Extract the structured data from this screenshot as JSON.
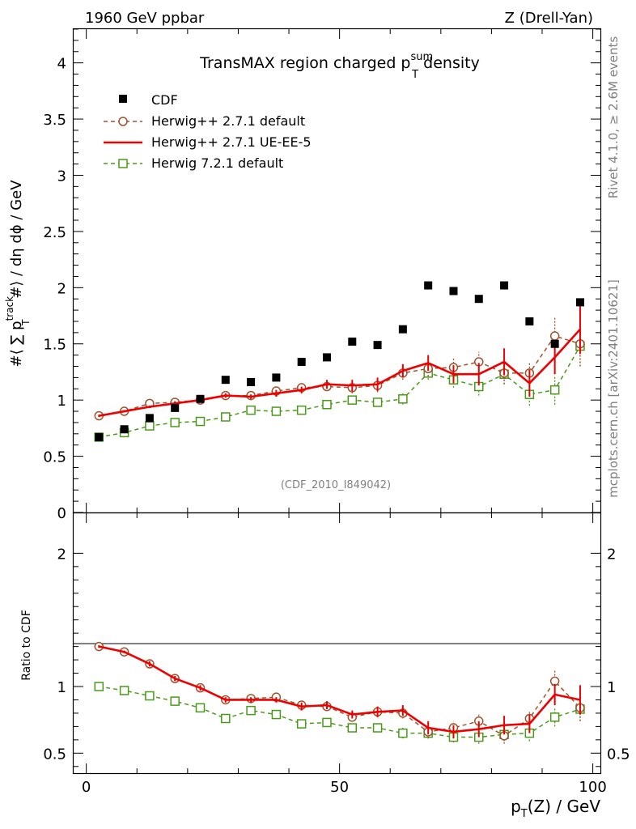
{
  "header": {
    "left": "1960 GeV ppbar",
    "right": "Z (Drell-Yan)"
  },
  "side_text": {
    "rivet": "Rivet 4.1.0, ≥ 2.6M events",
    "mcplots": "mcplots.cern.ch [arXiv:2401.10621]"
  },
  "chart_data": {
    "type": "line",
    "title_prefix": "TransMAX region charged p",
    "title_sup": "sum",
    "title_sub": "T",
    "title_suffix": " density",
    "analysis_label": "(CDF_2010_I849042)",
    "ylabel_main": {
      "prefix": "#⟨ ∑ p",
      "sup": "track",
      "sub": "T",
      "suffix": " #⟩ / dη dϕ / GeV"
    },
    "ylabel_ratio": "Ratio to CDF",
    "xlabel": {
      "prefix": "p",
      "sub": "T",
      "suffix": "(Z) / GeV"
    },
    "xlim": [
      -2.5,
      101.5
    ],
    "ylim_main": [
      0,
      4.3
    ],
    "ylim_ratio": [
      0.35,
      2.3
    ],
    "x_ticks": [
      "0",
      "50",
      "100"
    ],
    "y_ticks_main": [
      "0",
      "0.5",
      "1",
      "1.5",
      "2",
      "2.5",
      "3",
      "3.5",
      "4"
    ],
    "y_ticks_ratio": [
      "0.5",
      "1",
      "2"
    ],
    "x": [
      2.5,
      7.5,
      12.5,
      17.5,
      22.5,
      27.5,
      32.5,
      37.5,
      42.5,
      47.5,
      52.5,
      57.5,
      62.5,
      67.5,
      72.5,
      77.5,
      82.5,
      87.5,
      92.5,
      97.5
    ],
    "series": [
      {
        "name": "CDF",
        "style": "data",
        "color": "#000000",
        "values": [
          0.67,
          0.74,
          0.84,
          0.93,
          1.01,
          1.18,
          1.16,
          1.2,
          1.34,
          1.38,
          1.52,
          1.49,
          1.63,
          2.02,
          1.97,
          1.9,
          2.02,
          1.7,
          1.5,
          1.87
        ],
        "errors": [
          0.01,
          0.01,
          0.01,
          0.01,
          0.01,
          0.01,
          0.01,
          0.01,
          0.01,
          0.01,
          0.01,
          0.01,
          0.01,
          0.01,
          0.01,
          0.01,
          0.01,
          0.01,
          0.01,
          0.01
        ]
      },
      {
        "name": "Herwig++ 2.7.1 default",
        "style": "dashed-circle",
        "color": "#a0522d",
        "values": [
          0.86,
          0.9,
          0.97,
          0.98,
          1.0,
          1.04,
          1.04,
          1.08,
          1.11,
          1.12,
          1.11,
          1.13,
          1.24,
          1.28,
          1.29,
          1.34,
          1.24,
          1.24,
          1.57,
          1.5
        ],
        "errors": [
          0.01,
          0.01,
          0.01,
          0.02,
          0.02,
          0.02,
          0.02,
          0.03,
          0.03,
          0.04,
          0.05,
          0.06,
          0.06,
          0.07,
          0.08,
          0.09,
          0.1,
          0.1,
          0.17,
          0.2
        ],
        "ratio": [
          1.3,
          1.26,
          1.17,
          1.06,
          0.99,
          0.9,
          0.91,
          0.92,
          0.86,
          0.85,
          0.77,
          0.81,
          0.8,
          0.66,
          0.69,
          0.74,
          0.63,
          0.76,
          1.04,
          0.84
        ],
        "ratio_errors": [
          0.01,
          0.01,
          0.02,
          0.02,
          0.02,
          0.02,
          0.02,
          0.02,
          0.03,
          0.03,
          0.03,
          0.04,
          0.04,
          0.05,
          0.05,
          0.06,
          0.06,
          0.06,
          0.08,
          0.1
        ]
      },
      {
        "name": "Herwig++ 2.7.1 UE-EE-5",
        "style": "solid",
        "color": "#ee0000",
        "values": [
          0.86,
          0.9,
          0.94,
          0.97,
          1.0,
          1.04,
          1.03,
          1.06,
          1.09,
          1.14,
          1.13,
          1.14,
          1.26,
          1.33,
          1.23,
          1.23,
          1.34,
          1.15,
          1.38,
          1.63
        ],
        "errors": [
          0.01,
          0.01,
          0.01,
          0.02,
          0.02,
          0.02,
          0.02,
          0.03,
          0.03,
          0.04,
          0.05,
          0.06,
          0.06,
          0.07,
          0.08,
          0.1,
          0.12,
          0.12,
          0.15,
          0.22
        ],
        "ratio": [
          1.3,
          1.26,
          1.17,
          1.06,
          0.99,
          0.9,
          0.9,
          0.9,
          0.85,
          0.86,
          0.79,
          0.81,
          0.82,
          0.69,
          0.66,
          0.68,
          0.71,
          0.72,
          0.94,
          0.9
        ],
        "ratio_errors": [
          0.01,
          0.01,
          0.02,
          0.02,
          0.02,
          0.02,
          0.02,
          0.02,
          0.03,
          0.03,
          0.03,
          0.04,
          0.04,
          0.05,
          0.05,
          0.06,
          0.07,
          0.07,
          0.08,
          0.11
        ]
      },
      {
        "name": "Herwig 7.2.1 default",
        "style": "dashed-square",
        "color": "#4a9a1a",
        "values": [
          0.67,
          0.71,
          0.77,
          0.8,
          0.81,
          0.85,
          0.91,
          0.9,
          0.91,
          0.96,
          1.0,
          0.98,
          1.01,
          1.24,
          1.18,
          1.12,
          1.23,
          1.05,
          1.09,
          1.48
        ],
        "errors": [
          0.01,
          0.01,
          0.01,
          0.02,
          0.02,
          0.02,
          0.02,
          0.03,
          0.03,
          0.03,
          0.04,
          0.04,
          0.05,
          0.06,
          0.07,
          0.08,
          0.09,
          0.1,
          0.13,
          0.18
        ],
        "ratio": [
          1.0,
          0.97,
          0.93,
          0.89,
          0.84,
          0.76,
          0.82,
          0.79,
          0.72,
          0.73,
          0.69,
          0.69,
          0.65,
          0.65,
          0.62,
          0.62,
          0.64,
          0.65,
          0.77,
          0.83
        ],
        "ratio_errors": [
          0.01,
          0.01,
          0.01,
          0.02,
          0.02,
          0.02,
          0.02,
          0.02,
          0.02,
          0.03,
          0.03,
          0.03,
          0.04,
          0.04,
          0.04,
          0.05,
          0.05,
          0.06,
          0.07,
          0.09
        ]
      }
    ]
  }
}
